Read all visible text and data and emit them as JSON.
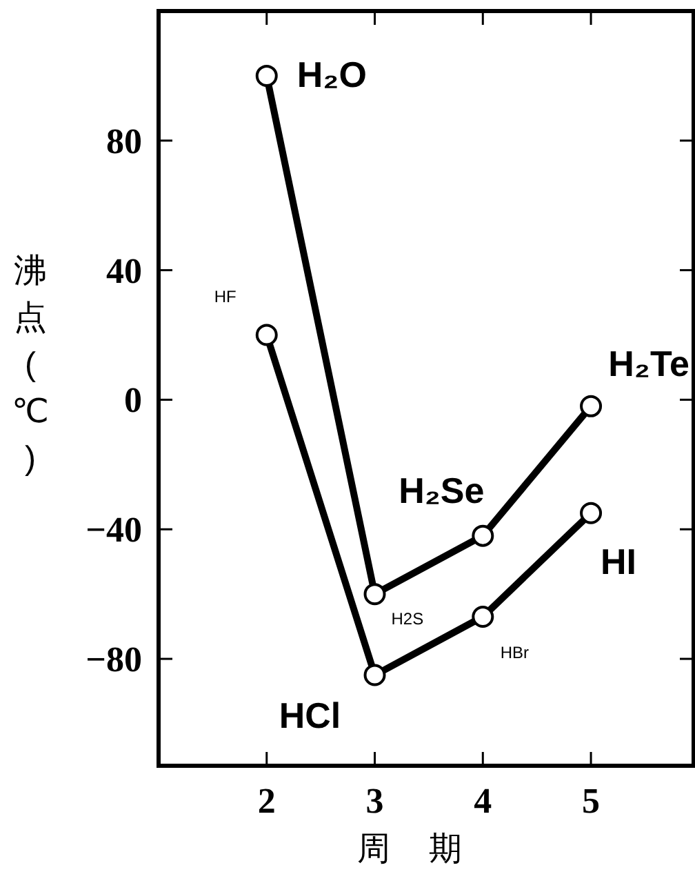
{
  "chart_data": {
    "type": "line",
    "xlabel": "周期",
    "ylabel": "沸点(℃)",
    "x": [
      2,
      3,
      4,
      5
    ],
    "series": [
      {
        "color": "#000000",
        "values": [
          100,
          -60,
          -42,
          -2
        ]
      },
      {
        "color": "#000000",
        "values": [
          20,
          -85,
          -67,
          -35
        ]
      }
    ],
    "xlim": [
      1,
      5.95
    ],
    "ylim": [
      -113,
      120
    ],
    "xticks": [
      2,
      3,
      4,
      5
    ],
    "yticks": [
      80,
      40,
      0,
      {
        "value": -40,
        "label": "−40"
      },
      {
        "value": -80,
        "label": "−80"
      }
    ],
    "marker": "circle",
    "line_style": "solid",
    "grid": false,
    "annotations": [
      {
        "text": "H₂O",
        "x": 2,
        "y": 100
      },
      {
        "text": "HF",
        "x": 2,
        "y": 20
      },
      {
        "text": "H2S",
        "x": 3,
        "y": -60
      },
      {
        "text": "H₂Se",
        "x": 4,
        "y": -42
      },
      {
        "text": "H₂Te",
        "x": 5,
        "y": -2
      },
      {
        "text": "HCl",
        "x": 3,
        "y": -85
      },
      {
        "text": "HBr",
        "x": 4,
        "y": -67
      },
      {
        "text": "HI",
        "x": 5,
        "y": -35
      }
    ]
  }
}
